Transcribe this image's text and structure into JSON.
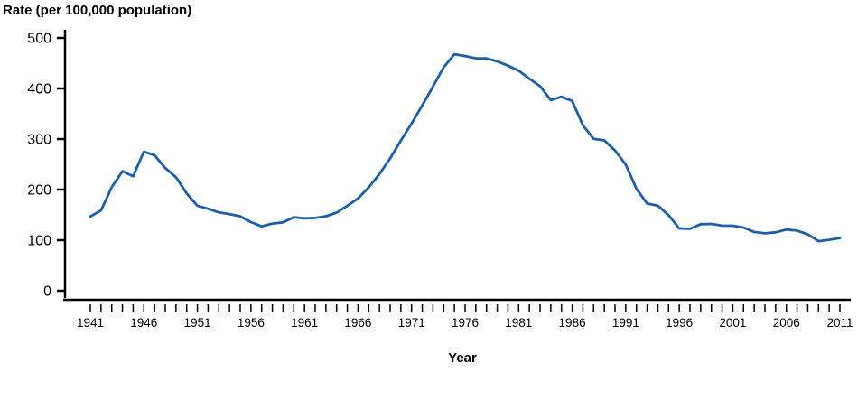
{
  "chart_data": {
    "type": "line",
    "title": "Rate (per 100,000 population)",
    "xlabel": "Year",
    "ylabel": "Rate (per 100,000 population)",
    "x_range": [
      1941,
      2011
    ],
    "x_minor_tick_step": 1,
    "x_ticks_labeled": [
      "1941",
      "1946",
      "1951",
      "1956",
      "1961",
      "1966",
      "1971",
      "1976",
      "1981",
      "1986",
      "1991",
      "1996",
      "2001",
      "2006",
      "2011"
    ],
    "ylim": [
      0,
      500
    ],
    "y_ticks": [
      0,
      100,
      200,
      300,
      400,
      500
    ],
    "grid": false,
    "legend": "none",
    "line_color": "#1b5ea9",
    "axis_color": "#000000",
    "series": [
      {
        "name": "Rate",
        "x": [
          1941,
          1942,
          1943,
          1944,
          1945,
          1946,
          1947,
          1948,
          1949,
          1950,
          1951,
          1952,
          1953,
          1954,
          1955,
          1956,
          1957,
          1958,
          1959,
          1960,
          1961,
          1962,
          1963,
          1964,
          1965,
          1966,
          1967,
          1968,
          1969,
          1970,
          1971,
          1972,
          1973,
          1974,
          1975,
          1976,
          1977,
          1978,
          1979,
          1980,
          1981,
          1982,
          1983,
          1984,
          1985,
          1986,
          1987,
          1988,
          1989,
          1990,
          1991,
          1992,
          1993,
          1994,
          1995,
          1996,
          1997,
          1998,
          1999,
          2000,
          2001,
          2002,
          2003,
          2004,
          2005,
          2006,
          2007,
          2008,
          2009,
          2010,
          2011
        ],
        "values": [
          146.7,
          159.0,
          204.6,
          236.5,
          226.2,
          275.0,
          268.0,
          242.7,
          224.3,
          192.5,
          168.0,
          161.9,
          155.0,
          151.6,
          147.2,
          135.7,
          127.4,
          132.9,
          135.1,
          145.4,
          143.0,
          144.0,
          147.4,
          154.5,
          168.0,
          182.4,
          204.5,
          230.6,
          261.7,
          297.2,
          330.5,
          366.6,
          403.7,
          442.0,
          467.7,
          464.1,
          459.7,
          459.4,
          453.5,
          445.1,
          435.2,
          419.5,
          404.5,
          377.0,
          383.6,
          375.4,
          327.3,
          300.3,
          297.4,
          277.4,
          249.5,
          201.6,
          172.4,
          168.2,
          149.5,
          123.2,
          122.5,
          131.6,
          132.2,
          128.7,
          128.5,
          125.0,
          116.2,
          113.5,
          115.6,
          120.9,
          118.9,
          111.6,
          98.1,
          100.8,
          104.2
        ]
      }
    ]
  }
}
